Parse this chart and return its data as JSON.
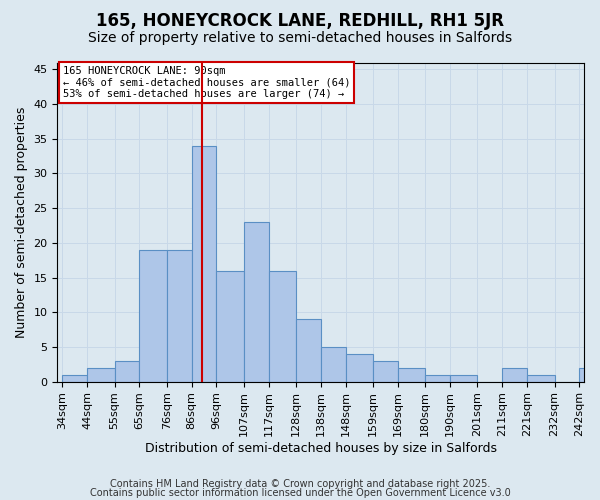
{
  "title1": "165, HONEYCROCK LANE, REDHILL, RH1 5JR",
  "title2": "Size of property relative to semi-detached houses in Salfords",
  "xlabel": "Distribution of semi-detached houses by size in Salfords",
  "ylabel": "Number of semi-detached properties",
  "annotation_line1": "165 HONEYCROCK LANE: 90sqm",
  "annotation_line2": "← 46% of semi-detached houses are smaller (64)",
  "annotation_line3": "53% of semi-detached houses are larger (74) →",
  "footer1": "Contains HM Land Registry data © Crown copyright and database right 2025.",
  "footer2": "Contains public sector information licensed under the Open Government Licence v3.0",
  "bar_edges": [
    34,
    44,
    55,
    65,
    76,
    86,
    96,
    107,
    117,
    128,
    138,
    148,
    159,
    169,
    180,
    190,
    201,
    211,
    221,
    232,
    242,
    252
  ],
  "bar_heights": [
    1,
    2,
    3,
    19,
    19,
    34,
    16,
    23,
    16,
    9,
    5,
    4,
    3,
    2,
    1,
    1,
    0,
    2,
    1,
    0,
    2
  ],
  "xtick_labels": [
    "34sqm",
    "44sqm",
    "55sqm",
    "65sqm",
    "76sqm",
    "86sqm",
    "96sqm",
    "107sqm",
    "117sqm",
    "128sqm",
    "138sqm",
    "148sqm",
    "159sqm",
    "169sqm",
    "180sqm",
    "190sqm",
    "201sqm",
    "211sqm",
    "221sqm",
    "232sqm",
    "242sqm"
  ],
  "bar_color": "#aec6e8",
  "bar_edgecolor": "#5a8fc4",
  "bar_linewidth": 0.8,
  "vline_x": 90,
  "vline_color": "#cc0000",
  "vline_linewidth": 1.5,
  "ylim": [
    0,
    46
  ],
  "yticks": [
    0,
    5,
    10,
    15,
    20,
    25,
    30,
    35,
    40,
    45
  ],
  "grid_color": "#c8d8e8",
  "bg_color": "#dce8f0",
  "annotation_box_edgecolor": "#cc0000",
  "annotation_box_facecolor": "#ffffff",
  "title1_fontsize": 12,
  "title2_fontsize": 10,
  "xlabel_fontsize": 9,
  "ylabel_fontsize": 9,
  "tick_fontsize": 8,
  "footer_fontsize": 7
}
